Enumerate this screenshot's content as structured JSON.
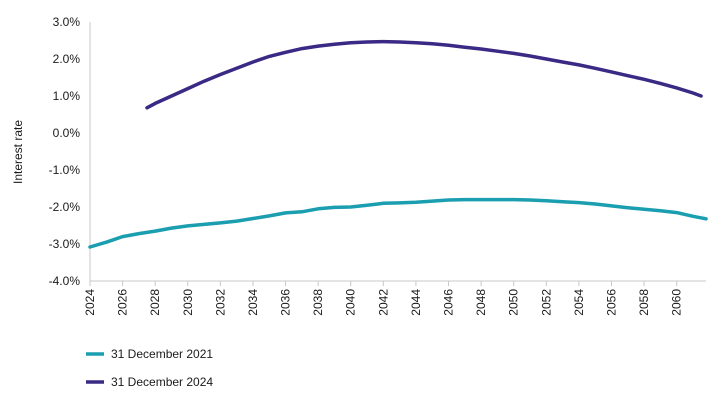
{
  "chart_data": {
    "type": "line",
    "title": "",
    "xlabel": "",
    "ylabel": "Interest rate",
    "xlim": [
      2024,
      2061.8
    ],
    "ylim": [
      -4.0,
      3.0
    ],
    "y_ticks": [
      3.0,
      2.0,
      1.0,
      0.0,
      -1.0,
      -2.0,
      -3.0,
      -4.0
    ],
    "y_tick_labels": [
      "3.0%",
      "2.0%",
      "1.0%",
      "0.0%",
      "-1.0%",
      "-2.0%",
      "-3.0%",
      "-4.0%"
    ],
    "x_ticks": [
      2024,
      2026,
      2028,
      2030,
      2032,
      2034,
      2036,
      2038,
      2040,
      2042,
      2044,
      2046,
      2048,
      2050,
      2052,
      2054,
      2056,
      2058,
      2060
    ],
    "x_tick_labels": [
      "2024",
      "2026",
      "2028",
      "2030",
      "2032",
      "2034",
      "2036",
      "2038",
      "2040",
      "2042",
      "2044",
      "2046",
      "2048",
      "2050",
      "2052",
      "2054",
      "2056",
      "2058",
      "2060"
    ],
    "grid": false,
    "legend_position": "bottom-left",
    "series": [
      {
        "name": "31 December 2021",
        "color": "#1a9eb0",
        "x": [
          2024,
          2025,
          2026,
          2027,
          2028,
          2029,
          2030,
          2031,
          2032,
          2033,
          2034,
          2035,
          2036,
          2037,
          2038,
          2039,
          2040,
          2041,
          2042,
          2043,
          2044,
          2045,
          2046,
          2047,
          2048,
          2049,
          2050,
          2051,
          2052,
          2053,
          2054,
          2055,
          2056,
          2057,
          2058,
          2059,
          2060,
          2061,
          2061.8
        ],
        "y": [
          -3.08,
          -2.95,
          -2.8,
          -2.72,
          -2.65,
          -2.57,
          -2.51,
          -2.47,
          -2.43,
          -2.38,
          -2.31,
          -2.24,
          -2.16,
          -2.13,
          -2.05,
          -2.01,
          -2.0,
          -1.95,
          -1.9,
          -1.89,
          -1.87,
          -1.84,
          -1.81,
          -1.8,
          -1.8,
          -1.8,
          -1.8,
          -1.81,
          -1.83,
          -1.86,
          -1.88,
          -1.92,
          -1.97,
          -2.02,
          -2.06,
          -2.1,
          -2.15,
          -2.25,
          -2.32
        ]
      },
      {
        "name": "31 December 2024",
        "color": "#3b2a85",
        "x": [
          2027.5,
          2028,
          2029,
          2030,
          2031,
          2032,
          2033,
          2034,
          2035,
          2036,
          2037,
          2038,
          2039,
          2040,
          2041,
          2042,
          2043,
          2044,
          2045,
          2046,
          2047,
          2048,
          2049,
          2050,
          2051,
          2052,
          2053,
          2054,
          2055,
          2056,
          2057,
          2058,
          2059,
          2060,
          2061,
          2061.5
        ],
        "y": [
          0.68,
          0.8,
          1.0,
          1.2,
          1.4,
          1.58,
          1.75,
          1.92,
          2.07,
          2.18,
          2.28,
          2.35,
          2.4,
          2.44,
          2.46,
          2.47,
          2.46,
          2.44,
          2.41,
          2.37,
          2.32,
          2.27,
          2.21,
          2.15,
          2.08,
          2.0,
          1.92,
          1.84,
          1.75,
          1.65,
          1.55,
          1.45,
          1.34,
          1.22,
          1.08,
          1.0
        ]
      }
    ]
  }
}
